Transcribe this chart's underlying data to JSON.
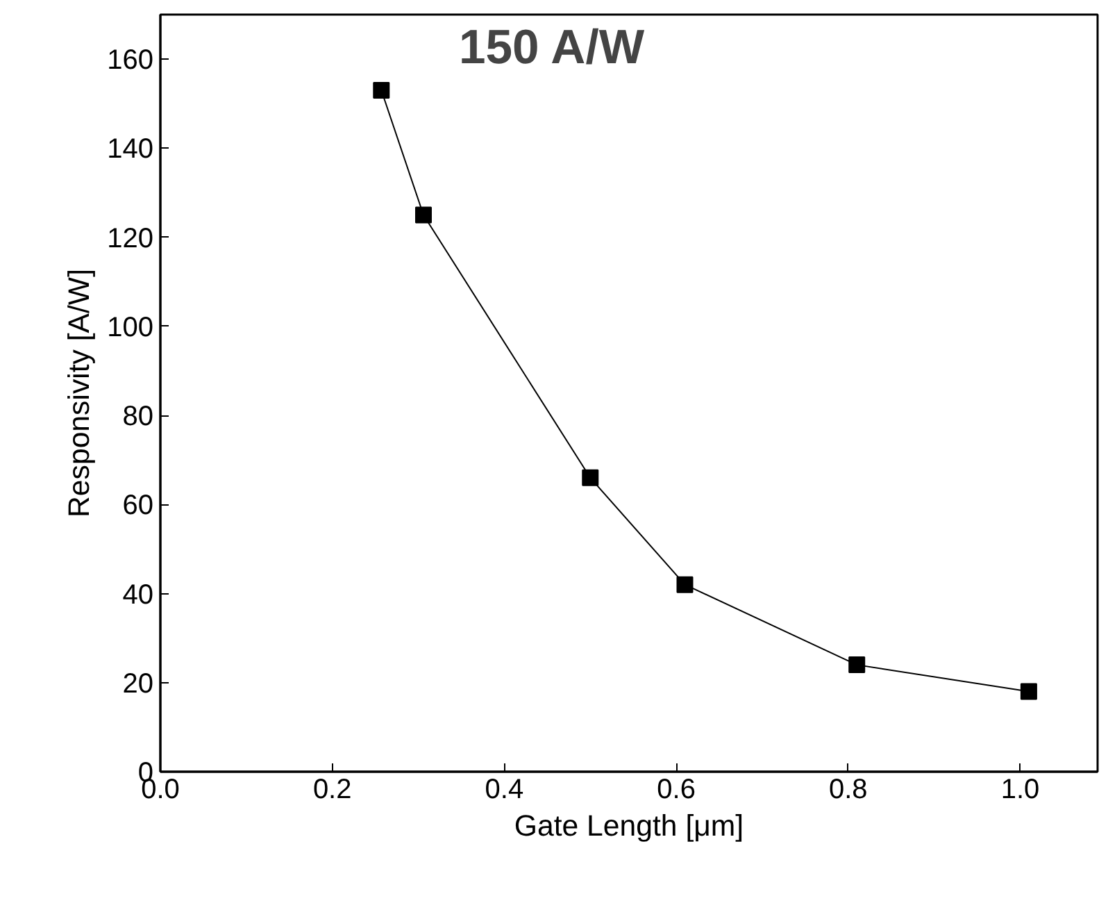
{
  "chart_data": {
    "type": "line",
    "xlabel": "Gate Length [μm]",
    "ylabel": "Responsivity [A/W]",
    "x": [
      0.257,
      0.306,
      0.5,
      0.61,
      0.81,
      1.01
    ],
    "series": [
      {
        "color": "#000000",
        "values": [
          153,
          125,
          66,
          42,
          24,
          18
        ]
      }
    ],
    "xlim": [
      0,
      1.09
    ],
    "ylim": [
      0,
      170
    ],
    "xticks": [
      {
        "value": 0,
        "label": "0.0"
      },
      0.2,
      0.4,
      0.6,
      0.8,
      {
        "value": 1,
        "label": "1.0"
      }
    ],
    "yticks": [
      0,
      20,
      40,
      60,
      80,
      100,
      120,
      140,
      160
    ],
    "annotations": [
      "150 A/W"
    ],
    "marker": "square",
    "line_style": "solid",
    "grid": false
  }
}
